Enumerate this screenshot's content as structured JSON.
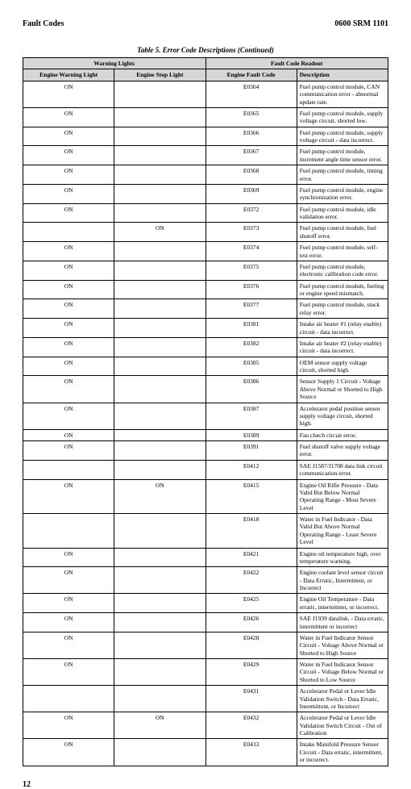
{
  "header": {
    "left": "Fault Codes",
    "right": "0600 SRM 1101"
  },
  "caption": "Table 5. Error Code Descriptions (Continued)",
  "colors": {
    "header_bg": "#d6d6d6",
    "border": "#000000",
    "text": "#000000",
    "background": "#ffffff"
  },
  "table": {
    "group_headers": {
      "warning": "Warning Lights",
      "readout": "Fault Code Readout"
    },
    "columns": {
      "engine_warning": "Engine Warning Light",
      "engine_stop": "Engine Stop Light",
      "engine_fault_code": "Engine Fault Code",
      "description": "Description"
    },
    "rows": [
      {
        "warn": "ON",
        "stop": "",
        "code": "E0364",
        "desc": "Fuel pump control module, CAN communication error - abnormal update rate."
      },
      {
        "warn": "ON",
        "stop": "",
        "code": "E0365",
        "desc": "Fuel pump control module, supply voltage circuit, shorted low."
      },
      {
        "warn": "ON",
        "stop": "",
        "code": "E0366",
        "desc": "Fuel pump control module, supply voltage circuit - data incorrect."
      },
      {
        "warn": "ON",
        "stop": "",
        "code": "E0367",
        "desc": "Fuel pump control module, increment angle time sensor error."
      },
      {
        "warn": "ON",
        "stop": "",
        "code": "E0368",
        "desc": "Fuel pump control module, timing error."
      },
      {
        "warn": "ON",
        "stop": "",
        "code": "E0369",
        "desc": "Fuel pump control module, engine synchronization error."
      },
      {
        "warn": "ON",
        "stop": "",
        "code": "E0372",
        "desc": "Fuel pump control module, idle validation error."
      },
      {
        "warn": "",
        "stop": "ON",
        "code": "E0373",
        "desc": "Fuel pump control module, fuel shutoff error."
      },
      {
        "warn": "ON",
        "stop": "",
        "code": "E0374",
        "desc": "Fuel pump control module, self-test error."
      },
      {
        "warn": "ON",
        "stop": "",
        "code": "E0375",
        "desc": "Fuel pump control module, electronic calibration code error."
      },
      {
        "warn": "ON",
        "stop": "",
        "code": "E0376",
        "desc": "Fuel pump control module, fueling or engine speed mismatch."
      },
      {
        "warn": "ON",
        "stop": "",
        "code": "E0377",
        "desc": "Fuel pump control module, stuck relay error."
      },
      {
        "warn": "ON",
        "stop": "",
        "code": "E0381",
        "desc": "Intake air heater #1 (relay enable) circuit - data incorrect."
      },
      {
        "warn": "ON",
        "stop": "",
        "code": "E0382",
        "desc": "Intake air heater #2 (relay enable) circuit - data incorrect."
      },
      {
        "warn": "ON",
        "stop": "",
        "code": "E0385",
        "desc": "OEM sensor supply voltage circuit, shorted high."
      },
      {
        "warn": "ON",
        "stop": "",
        "code": "E0386",
        "desc": "Sensor Supply 1 Circuit - Voltage Above Normal or Shorted to High Source"
      },
      {
        "warn": "ON",
        "stop": "",
        "code": "E0387",
        "desc": "Accelerator pedal position sensor supply voltage circuit, shorted high."
      },
      {
        "warn": "ON",
        "stop": "",
        "code": "E0389",
        "desc": "Fan clutch circuit error."
      },
      {
        "warn": "ON",
        "stop": "",
        "code": "E0391",
        "desc": "Fuel shutoff valve supply voltage error."
      },
      {
        "warn": "",
        "stop": "",
        "code": "E0412",
        "desc": "SAE J1587/J1708 data link circuit communication error."
      },
      {
        "warn": "ON",
        "stop": "ON",
        "code": "E0415",
        "desc": "Engine Oil Rifle Pressure - Data Valid But Below Normal Operating Range - Most Severe Level"
      },
      {
        "warn": "",
        "stop": "",
        "code": "E0418",
        "desc": "Water in Fuel Indicator - Data Valid But Above Normal Operating Range - Least Severe Level"
      },
      {
        "warn": "ON",
        "stop": "",
        "code": "E0421",
        "desc": "Engine oil temperature high, over temperature warning."
      },
      {
        "warn": "ON",
        "stop": "",
        "code": "E0422",
        "desc": "Engine coolant level sensor circuit - Data Erratic, Intermittent, or Incorrect"
      },
      {
        "warn": "ON",
        "stop": "",
        "code": "E0425",
        "desc": "Engine Oil Temperature - Data erratic, intermittent, or incorrect."
      },
      {
        "warn": "ON",
        "stop": "",
        "code": "E0426",
        "desc": "SAE J1939 datalink, - Data erratic, intermittent or incorrect"
      },
      {
        "warn": "ON",
        "stop": "",
        "code": "E0428",
        "desc": "Water in Fuel Indicator Sensor Circuit - Voltage Above Normal or Shorted to High Source"
      },
      {
        "warn": "ON",
        "stop": "",
        "code": "E0429",
        "desc": "Water in Fuel Indicator Sensor Circuit - Voltage Below Normal or Shorted to Low Source"
      },
      {
        "warn": "",
        "stop": "",
        "code": "E0431",
        "desc": "Accelerator Pedal or Lever Idle Validation Switch - Data Erratic, Intermittent, or Incorrect"
      },
      {
        "warn": "ON",
        "stop": "ON",
        "code": "E0432",
        "desc": "Accelerator Pedal or Lever Idle Validation Switch Circuit - Out of Calibration"
      },
      {
        "warn": "ON",
        "stop": "",
        "code": "E0433",
        "desc": "Intake Manifold Pressure Sensor Circuit - Data erratic, intermittent, or incorrect."
      }
    ]
  },
  "page_number": "12"
}
